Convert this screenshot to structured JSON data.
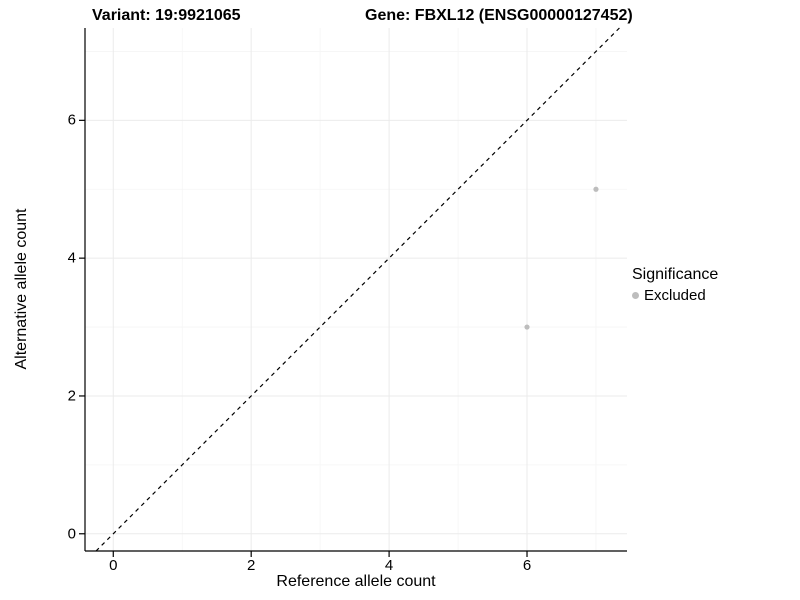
{
  "titles": {
    "left": "Variant: 19:9921065",
    "right": "Gene: FBXL12 (ENSG00000127452)"
  },
  "legend": {
    "title": "Significance",
    "items": [
      {
        "label": "Excluded",
        "color": "#bdbdbd"
      }
    ]
  },
  "chart_data": {
    "type": "scatter",
    "title": "Variant: 19:9921065 | Gene: FBXL12 (ENSG00000127452)",
    "xlabel": "Reference allele count",
    "ylabel": "Alternative allele count",
    "xlim": [
      -0.41,
      7.45
    ],
    "ylim": [
      -0.25,
      7.34
    ],
    "xticks": [
      0,
      2,
      4,
      6
    ],
    "yticks": [
      0,
      2,
      4,
      6
    ],
    "grid": true,
    "legend_position": "right",
    "series": [
      {
        "name": "Excluded",
        "color": "#bdbdbd",
        "points": [
          {
            "x": 7,
            "y": 5
          },
          {
            "x": 6,
            "y": 3
          }
        ]
      }
    ],
    "reference_line": {
      "type": "identity",
      "style": "dashed",
      "color": "#000000"
    }
  },
  "colors": {
    "background": "#ffffff",
    "grid_major": "#ebebeb",
    "grid_minor": "#f5f5f5",
    "axis": "#000000",
    "point": "#bdbdbd",
    "text": "#000000"
  }
}
